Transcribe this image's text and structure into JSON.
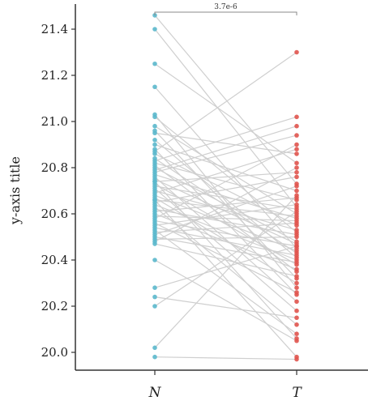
{
  "chart_data": {
    "type": "scatter",
    "subtype": "paired-dot",
    "categories": [
      "N",
      "T"
    ],
    "ylabel": "y-axis title",
    "ylim": [
      19.95,
      21.5
    ],
    "yticks": [
      "20.0",
      "20.2",
      "20.4",
      "20.6",
      "20.8",
      "21.0",
      "21.2",
      "21.4"
    ],
    "yticks_values": [
      20.0,
      20.2,
      20.4,
      20.6,
      20.8,
      21.0,
      21.2,
      21.4
    ],
    "significance": {
      "label": "3.7e-6",
      "between": [
        "N",
        "T"
      ]
    },
    "colors": {
      "N": "#5bb8cc",
      "T": "#e0544e",
      "line": "#cfcfcf",
      "axis": "#333333"
    },
    "grid": false,
    "pairs": [
      [
        21.46,
        20.73
      ],
      [
        21.4,
        20.63
      ],
      [
        21.25,
        20.82
      ],
      [
        21.15,
        20.45
      ],
      [
        21.03,
        20.28
      ],
      [
        21.02,
        20.52
      ],
      [
        20.98,
        20.6
      ],
      [
        20.96,
        20.32
      ],
      [
        20.95,
        20.86
      ],
      [
        20.92,
        20.41
      ],
      [
        20.9,
        20.7
      ],
      [
        20.88,
        20.25
      ],
      [
        20.86,
        20.55
      ],
      [
        20.84,
        20.43
      ],
      [
        20.83,
        21.02
      ],
      [
        20.82,
        20.66
      ],
      [
        20.81,
        20.35
      ],
      [
        20.8,
        20.48
      ],
      [
        20.78,
        20.94
      ],
      [
        20.77,
        20.58
      ],
      [
        20.76,
        20.22
      ],
      [
        20.75,
        20.47
      ],
      [
        20.74,
        20.78
      ],
      [
        20.73,
        20.38
      ],
      [
        20.72,
        20.62
      ],
      [
        20.71,
        20.18
      ],
      [
        20.7,
        20.53
      ],
      [
        20.69,
        20.88
      ],
      [
        20.68,
        20.44
      ],
      [
        20.67,
        20.3
      ],
      [
        20.66,
        20.59
      ],
      [
        20.65,
        20.76
      ],
      [
        20.64,
        20.4
      ],
      [
        20.63,
        20.12
      ],
      [
        20.62,
        20.51
      ],
      [
        20.61,
        20.67
      ],
      [
        20.6,
        20.36
      ],
      [
        20.59,
        20.57
      ],
      [
        20.58,
        20.9
      ],
      [
        20.57,
        20.46
      ],
      [
        20.56,
        20.26
      ],
      [
        20.55,
        20.64
      ],
      [
        20.54,
        20.42
      ],
      [
        20.53,
        20.08
      ],
      [
        20.52,
        20.56
      ],
      [
        20.51,
        20.72
      ],
      [
        20.5,
        20.39
      ],
      [
        20.49,
        20.5
      ],
      [
        20.48,
        20.8
      ],
      [
        20.47,
        20.33
      ],
      [
        20.4,
        20.05
      ],
      [
        20.28,
        20.46
      ],
      [
        20.24,
        20.15
      ],
      [
        20.2,
        20.61
      ],
      [
        20.02,
        20.68
      ],
      [
        19.98,
        19.97
      ],
      [
        20.87,
        21.3
      ],
      [
        20.79,
        20.98
      ],
      [
        20.74,
        20.06
      ],
      [
        20.66,
        19.98
      ]
    ]
  }
}
